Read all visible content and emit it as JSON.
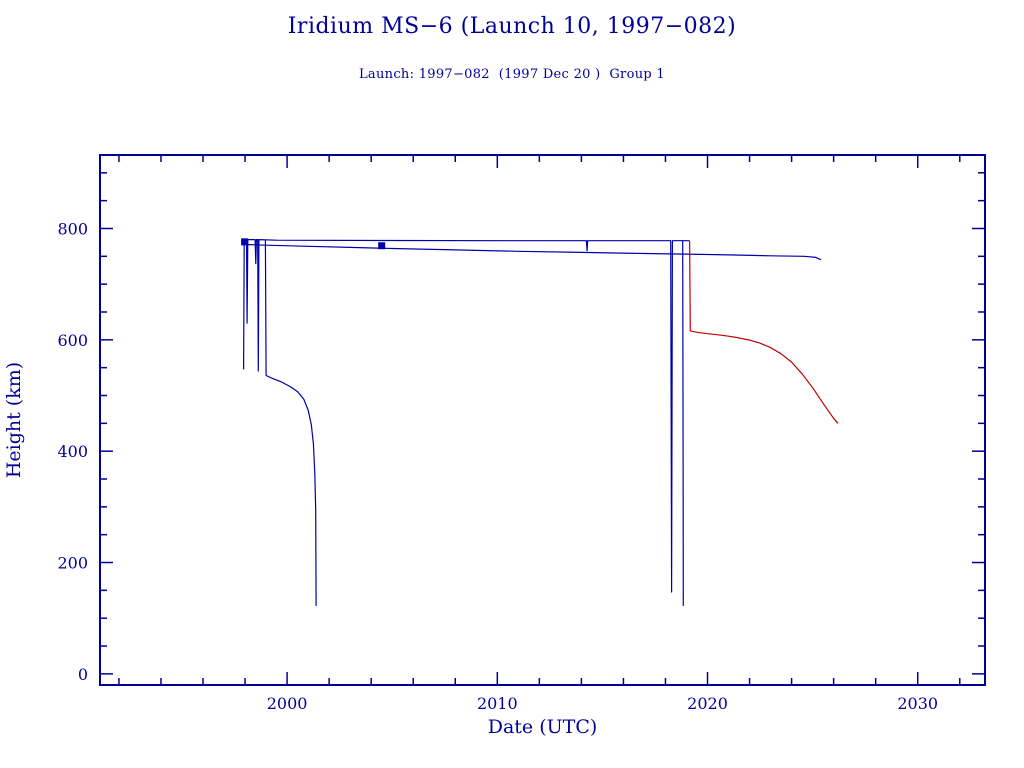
{
  "page": {
    "title": "Iridium MS−6 (Launch 10, 1997−082)",
    "subtitle": "Launch: 1997−082  (1997 Dec 20 )  Group 1"
  },
  "chart_data": {
    "type": "line",
    "title": "Iridium MS−6 (Launch 10, 1997−082)",
    "subtitle": "Launch: 1997−082  (1997 Dec 20 )  Group 1",
    "xlabel": "Date (UTC)",
    "ylabel": "Height (km)",
    "xlim": [
      1991.1,
      2033.2
    ],
    "ylim": [
      -20,
      932
    ],
    "grid": false,
    "legend": "none",
    "x_major_ticks": [
      2000,
      2010,
      2020,
      2030
    ],
    "x_minor_step": 2,
    "y_major_ticks": [
      0,
      200,
      400,
      600,
      800
    ],
    "y_minor_step": 50,
    "colors": {
      "axis": "#000099",
      "blue_line": "#0000aa",
      "red_line": "#c00000",
      "background": "#ffffff"
    },
    "series": [
      {
        "name": "object-1-operational-780km",
        "color": "#0000aa",
        "points": [
          [
            1997.9,
            548
          ],
          [
            1997.93,
            548
          ],
          [
            1997.96,
            780
          ],
          [
            1998.07,
            780
          ],
          [
            1998.1,
            630
          ],
          [
            1998.13,
            780
          ],
          [
            1998.48,
            780
          ],
          [
            1998.51,
            737
          ],
          [
            1998.54,
            780
          ],
          [
            1998.6,
            780
          ],
          [
            1998.63,
            544
          ],
          [
            1998.66,
            780
          ],
          [
            1999.5,
            779
          ],
          [
            2005,
            778.5
          ],
          [
            2010,
            778
          ],
          [
            2014.24,
            778
          ],
          [
            2014.27,
            760
          ],
          [
            2014.3,
            778
          ],
          [
            2018.25,
            778
          ],
          [
            2018.29,
            147
          ],
          [
            2018.33,
            778
          ],
          [
            2019.15,
            778
          ]
        ]
      },
      {
        "name": "object-2-decay-to-reentry-2001",
        "color": "#0000aa",
        "points": [
          [
            1998.97,
            779
          ],
          [
            1999.0,
            536
          ],
          [
            1999.35,
            530
          ],
          [
            1999.75,
            524
          ],
          [
            2000.15,
            516
          ],
          [
            2000.5,
            507
          ],
          [
            2000.8,
            493
          ],
          [
            2001.0,
            474
          ],
          [
            2001.15,
            448
          ],
          [
            2001.25,
            413
          ],
          [
            2001.32,
            360
          ],
          [
            2001.36,
            295
          ],
          [
            2001.38,
            122
          ]
        ]
      },
      {
        "name": "object-3-slow-decay-to-2025",
        "color": "#0000aa",
        "points": [
          [
            1998.15,
            771
          ],
          [
            1999,
            770
          ],
          [
            2001,
            768
          ],
          [
            2003,
            766
          ],
          [
            2005,
            764
          ],
          [
            2008,
            761.5
          ],
          [
            2011,
            759
          ],
          [
            2014,
            757
          ],
          [
            2017,
            755
          ],
          [
            2019,
            754
          ],
          [
            2021,
            752.5
          ],
          [
            2023,
            751
          ],
          [
            2024.6,
            750
          ],
          [
            2025.15,
            748
          ],
          [
            2025.4,
            744
          ]
        ]
      },
      {
        "name": "object-4-deorbit-2018",
        "color": "#0000aa",
        "points": [
          [
            2018.82,
            778
          ],
          [
            2018.84,
            400
          ],
          [
            2018.85,
            122
          ]
        ]
      },
      {
        "name": "predicted-decay-red",
        "color": "#c00000",
        "points": [
          [
            2019.15,
            778
          ],
          [
            2019.18,
            616
          ],
          [
            2019.5,
            613.5
          ],
          [
            2020,
            611
          ],
          [
            2020.5,
            609
          ],
          [
            2021,
            606.5
          ],
          [
            2021.5,
            603.5
          ],
          [
            2022,
            599.5
          ],
          [
            2022.5,
            594
          ],
          [
            2023,
            586
          ],
          [
            2023.5,
            575
          ],
          [
            2024,
            560
          ],
          [
            2024.5,
            539
          ],
          [
            2025,
            514
          ],
          [
            2025.5,
            486
          ],
          [
            2026,
            459
          ],
          [
            2026.2,
            450
          ]
        ]
      }
    ],
    "markers": [
      {
        "name": "square-marker-1998",
        "x": 1997.98,
        "y": 776,
        "color": "#0000aa"
      },
      {
        "name": "square-marker-2004",
        "x": 2004.5,
        "y": 769,
        "color": "#0000aa"
      }
    ]
  }
}
